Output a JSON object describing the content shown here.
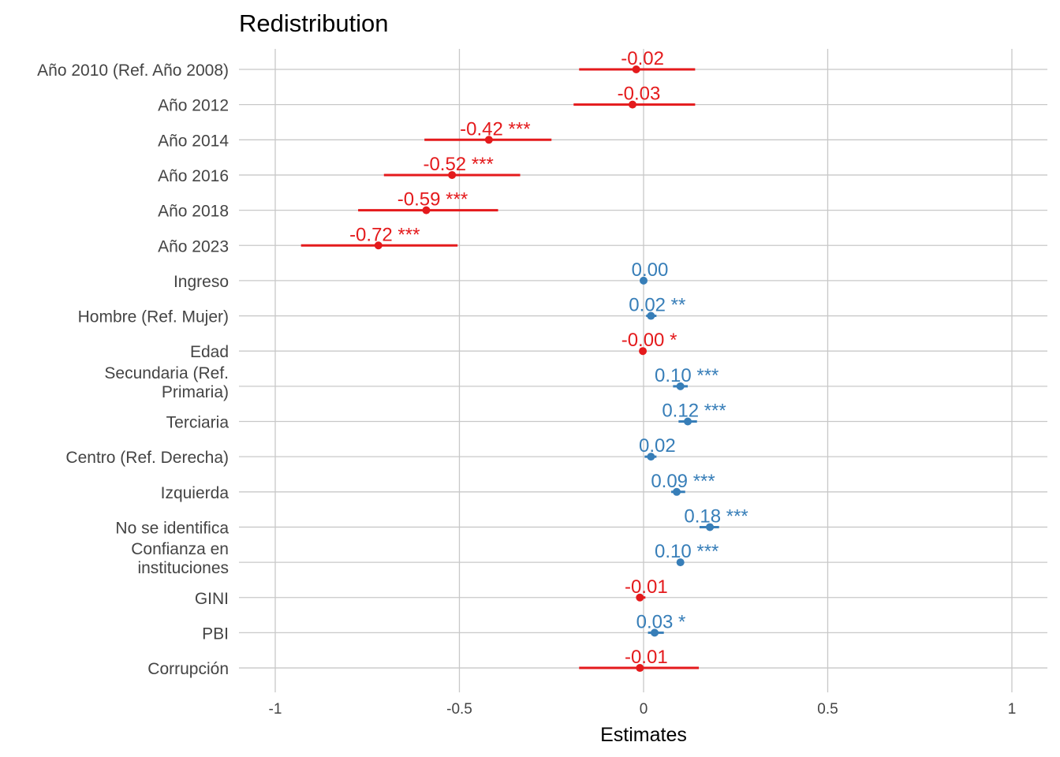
{
  "chart_data": {
    "type": "forest",
    "title": "Redistribution",
    "xlabel": "Estimates",
    "xlim": [
      -1.1,
      1.1
    ],
    "xticks": [
      -1,
      -0.5,
      0,
      0.5,
      1
    ],
    "xtick_labels": [
      "-1",
      "-0.5",
      "0",
      "0.5",
      "1"
    ],
    "grid": true,
    "colors": {
      "negative": "#e41a1c",
      "positive": "#377eb8"
    },
    "terms": [
      {
        "label": "Año 2010 (Ref. Año 2008)",
        "estimate": -0.02,
        "low": -0.175,
        "high": 0.14,
        "label_text": "-0.02",
        "stars": "",
        "sign": "negative"
      },
      {
        "label": "Año 2012",
        "estimate": -0.03,
        "low": -0.19,
        "high": 0.14,
        "label_text": "-0.03",
        "stars": "",
        "sign": "negative"
      },
      {
        "label": "Año 2014",
        "estimate": -0.42,
        "low": -0.595,
        "high": -0.25,
        "label_text": "-0.42",
        "stars": "***",
        "sign": "negative"
      },
      {
        "label": "Año 2016",
        "estimate": -0.52,
        "low": -0.705,
        "high": -0.335,
        "label_text": "-0.52",
        "stars": "***",
        "sign": "negative"
      },
      {
        "label": "Año 2018",
        "estimate": -0.59,
        "low": -0.775,
        "high": -0.395,
        "label_text": "-0.59",
        "stars": "***",
        "sign": "negative"
      },
      {
        "label": "Año 2023",
        "estimate": -0.72,
        "low": -0.93,
        "high": -0.505,
        "label_text": "-0.72",
        "stars": "***",
        "sign": "negative"
      },
      {
        "label": "Ingreso",
        "estimate": 0.0,
        "low": -0.005,
        "high": 0.005,
        "label_text": "0.00",
        "stars": "",
        "sign": "positive"
      },
      {
        "label": "Hombre (Ref. Mujer)",
        "estimate": 0.02,
        "low": 0.007,
        "high": 0.035,
        "label_text": "0.02",
        "stars": "**",
        "sign": "positive"
      },
      {
        "label": "Edad",
        "estimate": -0.002,
        "low": -0.004,
        "high": 0.0,
        "label_text": "-0.00",
        "stars": "*",
        "sign": "negative"
      },
      {
        "label": "Secundaria (Ref.\nPrimaria)",
        "estimate": 0.1,
        "low": 0.08,
        "high": 0.12,
        "label_text": "0.10",
        "stars": "***",
        "sign": "positive"
      },
      {
        "label": "Terciaria",
        "estimate": 0.12,
        "low": 0.095,
        "high": 0.145,
        "label_text": "0.12",
        "stars": "***",
        "sign": "positive"
      },
      {
        "label": "Centro (Ref. Derecha)",
        "estimate": 0.02,
        "low": 0.003,
        "high": 0.035,
        "label_text": "0.02",
        "stars": "",
        "sign": "positive"
      },
      {
        "label": "Izquierda",
        "estimate": 0.09,
        "low": 0.075,
        "high": 0.113,
        "label_text": "0.09",
        "stars": "***",
        "sign": "positive"
      },
      {
        "label": "No se identifica",
        "estimate": 0.18,
        "low": 0.152,
        "high": 0.205,
        "label_text": "0.18",
        "stars": "***",
        "sign": "positive"
      },
      {
        "label": "Confianza en\ninstituciones",
        "estimate": 0.1,
        "low": 0.092,
        "high": 0.108,
        "label_text": "0.10",
        "stars": "***",
        "sign": "positive"
      },
      {
        "label": "GINI",
        "estimate": -0.01,
        "low": -0.02,
        "high": 0.005,
        "label_text": "-0.01",
        "stars": "",
        "sign": "negative"
      },
      {
        "label": "PBI",
        "estimate": 0.03,
        "low": 0.012,
        "high": 0.055,
        "label_text": "0.03",
        "stars": "*",
        "sign": "positive"
      },
      {
        "label": "Corrupción",
        "estimate": -0.01,
        "low": -0.175,
        "high": 0.15,
        "label_text": "-0.01",
        "stars": "",
        "sign": "negative"
      }
    ]
  }
}
